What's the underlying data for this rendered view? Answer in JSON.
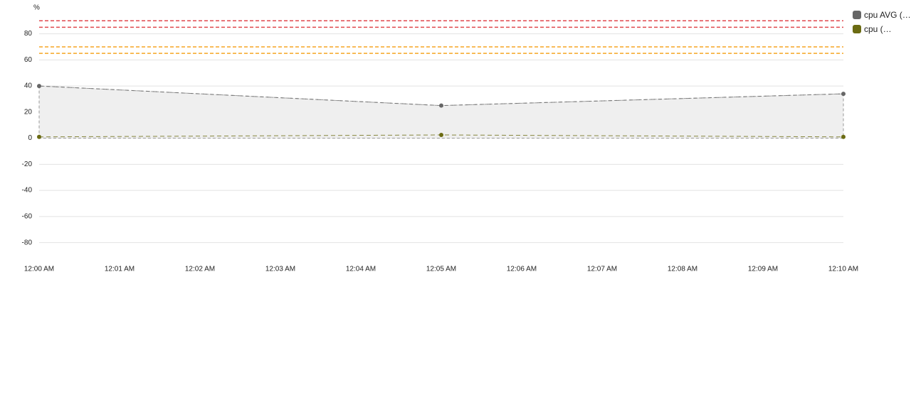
{
  "chart_data": {
    "type": "line",
    "y_axis_label": "%",
    "x": [
      "12:00 AM",
      "12:05 AM",
      "12:10 AM"
    ],
    "xticks": [
      "12:00 AM",
      "12:01 AM",
      "12:02 AM",
      "12:03 AM",
      "12:04 AM",
      "12:05 AM",
      "12:06 AM",
      "12:07 AM",
      "12:08 AM",
      "12:09 AM",
      "12:10 AM"
    ],
    "ylim": [
      -90,
      95
    ],
    "yticks": [
      80,
      60,
      40,
      20,
      0,
      -20,
      -40,
      -60,
      -80
    ],
    "grid": true,
    "legend": "right",
    "series": [
      {
        "name": "cpu AVG (…",
        "color": "#666666",
        "values": [
          40,
          25,
          34
        ],
        "area": true
      },
      {
        "name": "cpu (…",
        "color": "#6b6b12",
        "values": [
          1,
          2.5,
          1
        ]
      }
    ],
    "thresholds": [
      {
        "value": 90,
        "color": "#e0474c"
      },
      {
        "value": 85,
        "color": "#e0474c"
      },
      {
        "value": 70,
        "color": "#f5a623"
      },
      {
        "value": 65,
        "color": "#f5a623"
      }
    ]
  }
}
